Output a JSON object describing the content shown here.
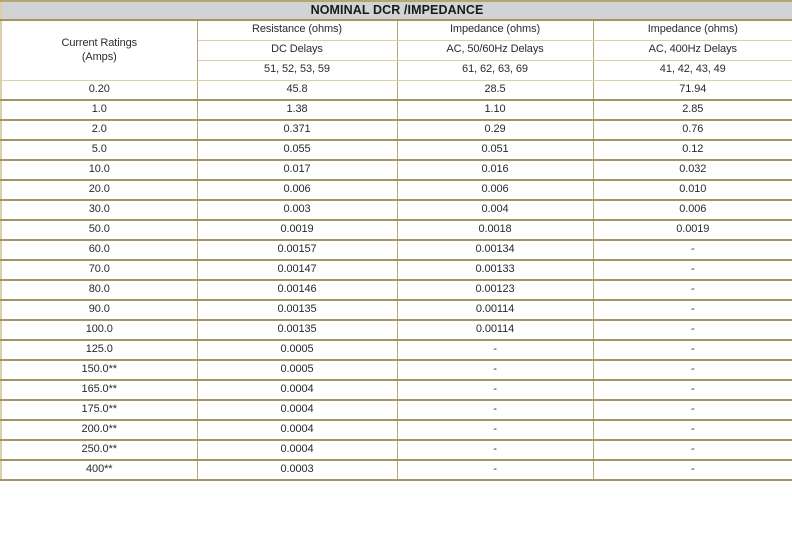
{
  "title": "NOMINAL DCR /IMPEDANCE",
  "colors": {
    "title_bg": "#d1d3d4",
    "border_dark": "#a4955f",
    "border_mid": "#b5a676",
    "border_light": "#d9cfac",
    "text": "#2b2b2b"
  },
  "header": {
    "col1_line1": "Current Ratings",
    "col1_line2": "(Amps)",
    "columns": [
      {
        "type": "Resistance (ohms)",
        "delay": "DC Delays",
        "models": "51, 52, 53, 59"
      },
      {
        "type": "Impedance (ohms)",
        "delay": "AC, 50/60Hz Delays",
        "models": "61, 62, 63, 69"
      },
      {
        "type": "Impedance (ohms)",
        "delay": "AC, 400Hz Delays",
        "models": "41, 42, 43, 49"
      }
    ]
  },
  "rows": [
    [
      "0.20",
      "45.8",
      "28.5",
      "71.94"
    ],
    [
      "1.0",
      "1.38",
      "1.10",
      "2.85"
    ],
    [
      "2.0",
      "0.371",
      "0.29",
      "0.76"
    ],
    [
      "5.0",
      "0.055",
      "0.051",
      "0.12"
    ],
    [
      "10.0",
      "0.017",
      "0.016",
      "0.032"
    ],
    [
      "20.0",
      "0.006",
      "0.006",
      "0.010"
    ],
    [
      "30.0",
      "0.003",
      "0.004",
      "0.006"
    ],
    [
      "50.0",
      "0.0019",
      "0.0018",
      "0.0019"
    ],
    [
      "60.0",
      "0.00157",
      "0.00134",
      "-"
    ],
    [
      "70.0",
      "0.00147",
      "0.00133",
      "-"
    ],
    [
      "80.0",
      "0.00146",
      "0.00123",
      "-"
    ],
    [
      "90.0",
      "0.00135",
      "0.00114",
      "-"
    ],
    [
      "100.0",
      "0.00135",
      "0.00114",
      "-"
    ],
    [
      "125.0",
      "0.0005",
      "-",
      "-"
    ],
    [
      "150.0**",
      "0.0005",
      "-",
      "-"
    ],
    [
      "165.0**",
      "0.0004",
      "-",
      "-"
    ],
    [
      "175.0**",
      "0.0004",
      "-",
      "-"
    ],
    [
      "200.0**",
      "0.0004",
      "-",
      "-"
    ],
    [
      "250.0**",
      "0.0004",
      "-",
      "-"
    ],
    [
      "400**",
      "0.0003",
      "-",
      "-"
    ]
  ]
}
